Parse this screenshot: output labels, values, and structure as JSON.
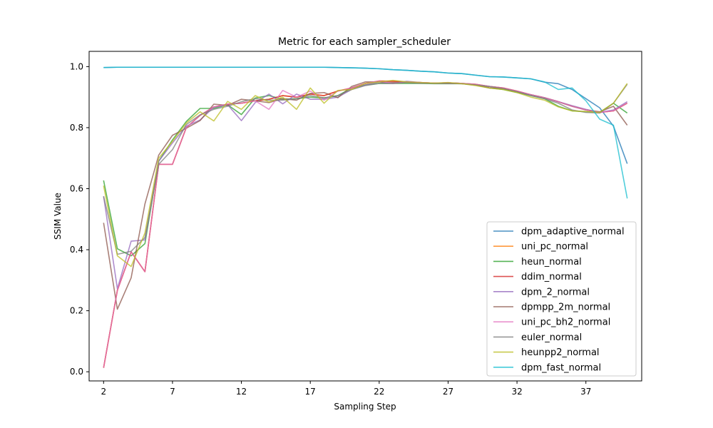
{
  "chart_data": {
    "type": "line",
    "title": "Metric for each sampler_scheduler",
    "xlabel": "Sampling Step",
    "ylabel": "SSIM Value",
    "xlim": [
      0.95,
      41.05
    ],
    "ylim": [
      -0.03,
      1.05
    ],
    "xticks": [
      2,
      7,
      12,
      17,
      22,
      27,
      32,
      37
    ],
    "yticks": [
      0.0,
      0.2,
      0.4,
      0.6,
      0.8,
      1.0
    ],
    "grid": false,
    "legend_position": "lower-right",
    "x": [
      2,
      3,
      4,
      5,
      6,
      7,
      8,
      9,
      10,
      11,
      12,
      13,
      14,
      15,
      16,
      17,
      18,
      19,
      20,
      21,
      22,
      23,
      24,
      25,
      26,
      27,
      28,
      29,
      30,
      31,
      32,
      33,
      34,
      35,
      36,
      37,
      38,
      39,
      40
    ],
    "series": [
      {
        "name": "dpm_adaptive_normal",
        "color": "#1f77b4",
        "values": [
          0.997,
          0.998,
          0.998,
          0.998,
          0.998,
          0.998,
          0.998,
          0.998,
          0.998,
          0.998,
          0.998,
          0.998,
          0.998,
          0.998,
          0.998,
          0.998,
          0.998,
          0.997,
          0.996,
          0.995,
          0.993,
          0.99,
          0.988,
          0.985,
          0.983,
          0.979,
          0.977,
          0.972,
          0.967,
          0.966,
          0.963,
          0.96,
          0.949,
          0.944,
          0.925,
          0.895,
          0.865,
          0.805,
          0.682
        ]
      },
      {
        "name": "uni_pc_normal",
        "color": "#ff7f0e",
        "values": [
          0.013,
          0.267,
          0.393,
          0.328,
          0.68,
          0.68,
          0.8,
          0.84,
          0.868,
          0.877,
          0.88,
          0.888,
          0.893,
          0.905,
          0.9,
          0.91,
          0.905,
          0.92,
          0.93,
          0.945,
          0.953,
          0.952,
          0.95,
          0.948,
          0.946,
          0.947,
          0.945,
          0.942,
          0.935,
          0.93,
          0.92,
          0.908,
          0.898,
          0.885,
          0.87,
          0.858,
          0.85,
          0.855,
          0.88
        ]
      },
      {
        "name": "heun_normal",
        "color": "#2ca02c",
        "values": [
          0.627,
          0.403,
          0.38,
          0.42,
          0.69,
          0.76,
          0.82,
          0.863,
          0.863,
          0.875,
          0.843,
          0.897,
          0.905,
          0.893,
          0.895,
          0.9,
          0.897,
          0.905,
          0.93,
          0.94,
          0.945,
          0.945,
          0.945,
          0.945,
          0.944,
          0.944,
          0.944,
          0.94,
          0.93,
          0.925,
          0.915,
          0.905,
          0.895,
          0.87,
          0.855,
          0.852,
          0.85,
          0.88,
          0.848
        ]
      },
      {
        "name": "ddim_normal",
        "color": "#d62728",
        "values": [
          0.013,
          0.267,
          0.393,
          0.328,
          0.68,
          0.68,
          0.8,
          0.84,
          0.868,
          0.877,
          0.88,
          0.888,
          0.893,
          0.905,
          0.9,
          0.91,
          0.905,
          0.92,
          0.93,
          0.945,
          0.953,
          0.952,
          0.95,
          0.948,
          0.946,
          0.947,
          0.945,
          0.942,
          0.935,
          0.93,
          0.92,
          0.908,
          0.898,
          0.885,
          0.87,
          0.858,
          0.85,
          0.855,
          0.88
        ]
      },
      {
        "name": "dpm_2_normal",
        "color": "#9467bd",
        "values": [
          0.575,
          0.272,
          0.428,
          0.432,
          0.69,
          0.75,
          0.805,
          0.825,
          0.867,
          0.875,
          0.823,
          0.882,
          0.91,
          0.878,
          0.91,
          0.893,
          0.893,
          0.9,
          0.925,
          0.94,
          0.95,
          0.945,
          0.952,
          0.948,
          0.946,
          0.947,
          0.945,
          0.94,
          0.935,
          0.928,
          0.918,
          0.908,
          0.898,
          0.885,
          0.872,
          0.86,
          0.85,
          0.858,
          0.885
        ]
      },
      {
        "name": "dpmpp_2m_normal",
        "color": "#8c564b",
        "values": [
          0.488,
          0.205,
          0.308,
          0.55,
          0.71,
          0.775,
          0.798,
          0.823,
          0.877,
          0.873,
          0.893,
          0.888,
          0.882,
          0.895,
          0.89,
          0.912,
          0.915,
          0.898,
          0.935,
          0.95,
          0.95,
          0.948,
          0.948,
          0.946,
          0.946,
          0.945,
          0.944,
          0.94,
          0.93,
          0.928,
          0.918,
          0.908,
          0.898,
          0.885,
          0.87,
          0.858,
          0.852,
          0.87,
          0.808
        ]
      },
      {
        "name": "uni_pc_bh2_normal",
        "color": "#e377c2",
        "values": [
          0.013,
          0.267,
          0.393,
          0.328,
          0.68,
          0.68,
          0.8,
          0.84,
          0.868,
          0.877,
          0.88,
          0.888,
          0.86,
          0.922,
          0.9,
          0.92,
          0.89,
          0.92,
          0.93,
          0.945,
          0.953,
          0.945,
          0.95,
          0.948,
          0.946,
          0.947,
          0.945,
          0.942,
          0.935,
          0.93,
          0.92,
          0.908,
          0.898,
          0.885,
          0.87,
          0.858,
          0.85,
          0.855,
          0.88
        ]
      },
      {
        "name": "euler_normal",
        "color": "#7f7f7f",
        "values": [
          0.575,
          0.385,
          0.395,
          0.44,
          0.68,
          0.728,
          0.81,
          0.842,
          0.86,
          0.87,
          0.885,
          0.895,
          0.89,
          0.89,
          0.895,
          0.905,
          0.898,
          0.905,
          0.925,
          0.938,
          0.945,
          0.945,
          0.948,
          0.946,
          0.945,
          0.945,
          0.944,
          0.94,
          0.935,
          0.928,
          0.918,
          0.905,
          0.895,
          0.88,
          0.858,
          0.85,
          0.848,
          0.88,
          0.942
        ]
      },
      {
        "name": "heunpp2_normal",
        "color": "#bcbd22",
        "values": [
          0.61,
          0.38,
          0.345,
          0.455,
          0.7,
          0.755,
          0.815,
          0.852,
          0.822,
          0.886,
          0.86,
          0.905,
          0.884,
          0.9,
          0.86,
          0.93,
          0.88,
          0.922,
          0.925,
          0.945,
          0.95,
          0.955,
          0.95,
          0.948,
          0.946,
          0.948,
          0.944,
          0.938,
          0.93,
          0.925,
          0.915,
          0.9,
          0.89,
          0.868,
          0.855,
          0.853,
          0.85,
          0.88,
          0.945
        ]
      },
      {
        "name": "dpm_fast_normal",
        "color": "#17becf",
        "values": [
          0.997,
          0.998,
          0.998,
          0.998,
          0.998,
          0.998,
          0.998,
          0.998,
          0.998,
          0.998,
          0.998,
          0.998,
          0.998,
          0.998,
          0.998,
          0.998,
          0.998,
          0.997,
          0.996,
          0.995,
          0.993,
          0.99,
          0.988,
          0.985,
          0.983,
          0.979,
          0.977,
          0.972,
          0.967,
          0.966,
          0.963,
          0.96,
          0.95,
          0.925,
          0.93,
          0.888,
          0.828,
          0.808,
          0.568
        ]
      }
    ]
  }
}
